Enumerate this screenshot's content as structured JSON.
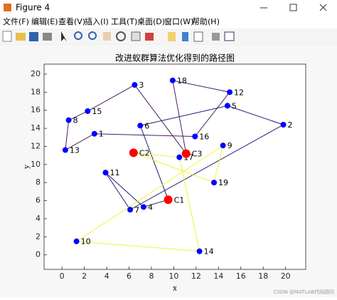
{
  "window": {
    "title": "Figure 4",
    "menu": [
      "文件(F)",
      "编辑(E)",
      "查看(V)",
      "插入(I)",
      "工具(T)",
      "桌面(D)",
      "窗口(W)",
      "帮助(H)"
    ]
  },
  "chart_data": {
    "type": "line",
    "title": "改进蚁群算法优化得到的路径图",
    "x_label": "x",
    "y_label": "y",
    "xlim": [
      -1.6,
      21.8
    ],
    "ylim": [
      -1.6,
      21.1
    ],
    "xticks": [
      0,
      2,
      4,
      6,
      8,
      10,
      12,
      14,
      16,
      18,
      20
    ],
    "yticks": [
      0,
      2,
      4,
      6,
      8,
      10,
      12,
      14,
      16,
      18,
      20
    ],
    "series": [
      {
        "color": "#4b1f5e",
        "x": [
          11.1,
          6.5,
          2.3,
          0.6,
          0.3,
          2.9,
          11.9,
          15.0,
          9.9,
          11.1
        ],
        "y": [
          11.2,
          18.8,
          15.9,
          14.9,
          11.6,
          13.4,
          13.1,
          18.0,
          19.3,
          11.2
        ]
      },
      {
        "color": "#1c1c72",
        "x": [
          9.5,
          7.0,
          14.8,
          19.8,
          6.1,
          3.9,
          7.3,
          9.5
        ],
        "y": [
          6.1,
          14.3,
          16.5,
          14.4,
          5.0,
          9.1,
          5.3,
          6.1
        ]
      },
      {
        "color": "#f2f23c",
        "x": [
          6.4,
          13.6,
          14.4,
          1.3,
          12.3,
          10.5,
          6.4
        ],
        "y": [
          11.3,
          8.0,
          12.1,
          1.5,
          0.4,
          10.8,
          11.3
        ]
      }
    ],
    "customer_color": "#0000ff",
    "depot_color": "#ff0000",
    "points": [
      {
        "label": "1",
        "x": 2.9,
        "y": 13.4
      },
      {
        "label": "2",
        "x": 19.8,
        "y": 14.4
      },
      {
        "label": "3",
        "x": 6.5,
        "y": 18.8
      },
      {
        "label": "4",
        "x": 7.3,
        "y": 5.3
      },
      {
        "label": "5",
        "x": 14.8,
        "y": 16.5
      },
      {
        "label": "6",
        "x": 7.0,
        "y": 14.3
      },
      {
        "label": "7",
        "x": 6.1,
        "y": 5.0
      },
      {
        "label": "8",
        "x": 0.6,
        "y": 14.9
      },
      {
        "label": "9",
        "x": 14.4,
        "y": 12.1
      },
      {
        "label": "10",
        "x": 1.3,
        "y": 1.5
      },
      {
        "label": "11",
        "x": 3.9,
        "y": 9.1
      },
      {
        "label": "12",
        "x": 15.0,
        "y": 18.0
      },
      {
        "label": "13",
        "x": 0.3,
        "y": 11.6
      },
      {
        "label": "14",
        "x": 12.3,
        "y": 0.4
      },
      {
        "label": "15",
        "x": 2.3,
        "y": 15.9
      },
      {
        "label": "16",
        "x": 11.9,
        "y": 13.1
      },
      {
        "label": "17",
        "x": 10.5,
        "y": 10.8
      },
      {
        "label": "18",
        "x": 9.9,
        "y": 19.3
      },
      {
        "label": "19",
        "x": 13.6,
        "y": 8.0
      }
    ],
    "depots": [
      {
        "label": "C1",
        "x": 9.5,
        "y": 6.1
      },
      {
        "label": "C2",
        "x": 6.4,
        "y": 11.3
      },
      {
        "label": "C3",
        "x": 11.1,
        "y": 11.2
      }
    ]
  },
  "watermark": "CSDN @MATLAB代码顾问"
}
